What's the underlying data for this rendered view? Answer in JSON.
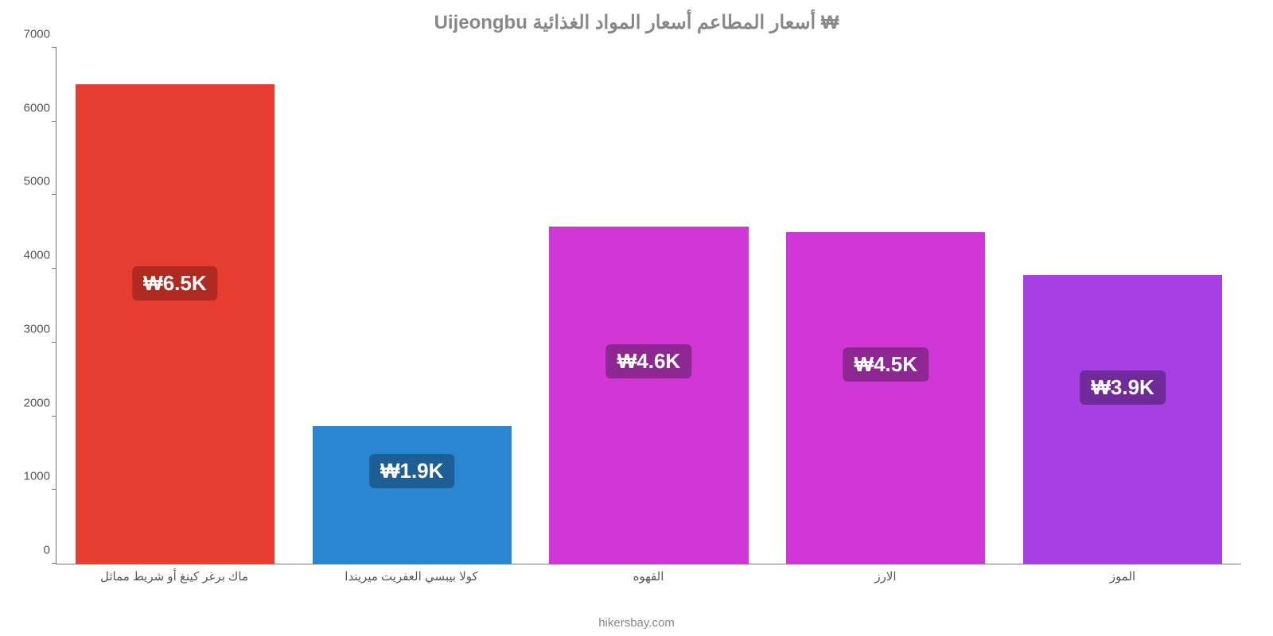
{
  "chart": {
    "type": "bar",
    "title": "₩ أسعار المطاعم أسعار المواد الغذائية Uijeongbu",
    "title_color": "#888888",
    "title_fontsize": 24,
    "background_color": "#ffffff",
    "axis_color": "#777777",
    "tick_label_color": "#555555",
    "tick_fontsize": 15,
    "badge_fontsize": 26,
    "badge_text_color": "#ffffff",
    "ylim": [
      0,
      7000
    ],
    "ytick_step": 1000,
    "yticks": [
      {
        "v": 0,
        "label": "0"
      },
      {
        "v": 1000,
        "label": "1000"
      },
      {
        "v": 2000,
        "label": "2000"
      },
      {
        "v": 3000,
        "label": "3000"
      },
      {
        "v": 4000,
        "label": "4000"
      },
      {
        "v": 5000,
        "label": "5000"
      },
      {
        "v": 6000,
        "label": "6000"
      },
      {
        "v": 7000,
        "label": "7000"
      }
    ],
    "bar_width_pct": 84,
    "bars": [
      {
        "category": "ماك برغر كينغ أو شريط مماثل",
        "value": 6500,
        "value_label": "₩6.5K",
        "color": "#e73c30",
        "badge_bg": "#b02a22"
      },
      {
        "category": "كولا بيبسي العفريت ميريندا",
        "value": 1870,
        "value_label": "₩1.9K",
        "color": "#2a86d1",
        "badge_bg": "#1d5f95"
      },
      {
        "category": "القهوه",
        "value": 4570,
        "value_label": "₩4.6K",
        "color": "#d136d6",
        "badge_bg": "#8f2793"
      },
      {
        "category": "الارز",
        "value": 4500,
        "value_label": "₩4.5K",
        "color": "#d136d6",
        "badge_bg": "#8f2793"
      },
      {
        "category": "الموز",
        "value": 3920,
        "value_label": "₩3.9K",
        "color": "#a740e2",
        "badge_bg": "#6f2b99"
      }
    ],
    "footer": "hikersbay.com",
    "footer_color": "#888888"
  }
}
